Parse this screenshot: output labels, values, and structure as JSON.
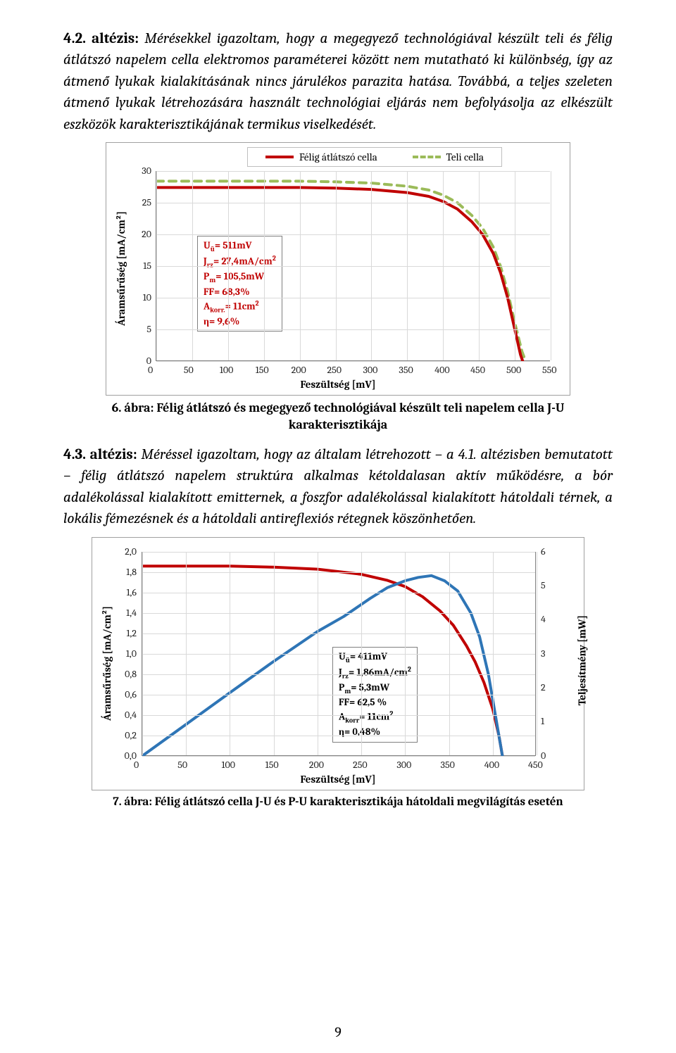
{
  "paragraph1_html": "<span class='thesis-label'>4.2. altézis:</span> Mérésekkel igazoltam, hogy a megegyező technológiával készült teli és félig átlátszó napelem cella elektromos paraméterei között nem mutatható ki különbség, így az átmenő lyukak kialakításának nincs járulékos parazita hatása. Továbbá, a teljes szeleten átmenő lyukak létrehozására használt technológiai eljárás nem befolyásolja az elkészült eszközök karakterisztikájának termikus viselkedését.",
  "paragraph2_html": "<span class='thesis-label'>4.3. altézis:</span> Méréssel igazoltam, hogy az általam létrehozott – a 4.1. altézisben bemutatott – félig átlátszó napelem struktúra alkalmas kétoldalasan aktív működésre, a bór adalékolással kialakított emitternek, a foszfor adalékolással kialakított hátoldali térnek, a lokális fémezésnek és a hátoldali antireflexiós rétegnek köszönhetően.",
  "fig6": {
    "caption": "6. ábra: Félig átlátszó és megegyező technológiával készült teli napelem cella J-U karakterisztikája",
    "legend": {
      "a": "Félig átlátszó cella",
      "b": "Teli cella"
    },
    "xlabel": "Feszültség [mV]",
    "ylabel": "Áramsűrűség [mA/cm²]",
    "xlim": [
      0,
      550
    ],
    "xtick_step": 50,
    "ylim": [
      0,
      30
    ],
    "ytick_step": 5,
    "series": {
      "solid": {
        "color": "#c00000",
        "width": 4,
        "style": "solid"
      },
      "dash": {
        "color": "#9bbb59",
        "width": 4,
        "style": "dash"
      }
    },
    "solid_points": [
      [
        0,
        27.4
      ],
      [
        50,
        27.4
      ],
      [
        100,
        27.4
      ],
      [
        150,
        27.4
      ],
      [
        200,
        27.4
      ],
      [
        250,
        27.3
      ],
      [
        300,
        27.1
      ],
      [
        350,
        26.6
      ],
      [
        380,
        26.0
      ],
      [
        400,
        25.2
      ],
      [
        420,
        24.0
      ],
      [
        440,
        22.0
      ],
      [
        455,
        20.0
      ],
      [
        470,
        17.0
      ],
      [
        480,
        14.0
      ],
      [
        490,
        10.0
      ],
      [
        500,
        5.0
      ],
      [
        508,
        1.0
      ],
      [
        511,
        0
      ]
    ],
    "dash_points": [
      [
        0,
        28.4
      ],
      [
        50,
        28.4
      ],
      [
        100,
        28.4
      ],
      [
        150,
        28.4
      ],
      [
        200,
        28.4
      ],
      [
        250,
        28.3
      ],
      [
        300,
        28.1
      ],
      [
        350,
        27.6
      ],
      [
        380,
        27.0
      ],
      [
        400,
        26.2
      ],
      [
        420,
        25.0
      ],
      [
        440,
        23.0
      ],
      [
        455,
        21.0
      ],
      [
        470,
        18.0
      ],
      [
        480,
        15.0
      ],
      [
        490,
        11.0
      ],
      [
        500,
        6.0
      ],
      [
        510,
        1.5
      ],
      [
        515,
        0
      ]
    ],
    "params_html": "U<sub>ü</sub>= 511mV<br>J<sub>rz</sub>= 27,4mA/cm<sup>2</sup><br>P<sub>m</sub>= 105,5mW<br>FF= 68,3%<br>A<sub>korr.</sub>= 11cm<sup>2</sup><br>η= 9,6%",
    "grid_color": "#d9d9d9",
    "background": "#ffffff"
  },
  "fig7": {
    "caption": "7. ábra: Félig átlátszó cella J-U és P-U karakterisztikája hátoldali megvilágítás esetén",
    "xlabel": "Feszültség [mV]",
    "ylabel_left": "Áramsűrűség [mA/cm²]",
    "ylabel_right": "Teljesítmény [mW]",
    "xlim": [
      0,
      450
    ],
    "xtick_step": 50,
    "ylim_left": [
      0,
      2.0
    ],
    "ytick_left_step": 0.2,
    "ylim_right": [
      0,
      6
    ],
    "ytick_right_step": 1,
    "series": {
      "ju": {
        "color": "#c00000",
        "width": 4
      },
      "pu": {
        "color": "#2e75b6",
        "width": 4
      }
    },
    "ju_points": [
      [
        0,
        1.86
      ],
      [
        50,
        1.86
      ],
      [
        100,
        1.86
      ],
      [
        150,
        1.85
      ],
      [
        200,
        1.83
      ],
      [
        250,
        1.78
      ],
      [
        280,
        1.72
      ],
      [
        300,
        1.66
      ],
      [
        320,
        1.56
      ],
      [
        340,
        1.42
      ],
      [
        355,
        1.28
      ],
      [
        370,
        1.08
      ],
      [
        380,
        0.92
      ],
      [
        390,
        0.72
      ],
      [
        400,
        0.46
      ],
      [
        407,
        0.2
      ],
      [
        411,
        0
      ]
    ],
    "pu_points_mw": [
      [
        0,
        0
      ],
      [
        50,
        0.93
      ],
      [
        100,
        1.86
      ],
      [
        150,
        2.78
      ],
      [
        200,
        3.66
      ],
      [
        230,
        4.1
      ],
      [
        260,
        4.63
      ],
      [
        280,
        4.95
      ],
      [
        300,
        5.15
      ],
      [
        315,
        5.25
      ],
      [
        330,
        5.3
      ],
      [
        345,
        5.15
      ],
      [
        360,
        4.85
      ],
      [
        375,
        4.2
      ],
      [
        385,
        3.5
      ],
      [
        395,
        2.4
      ],
      [
        403,
        1.2
      ],
      [
        411,
        0
      ]
    ],
    "params_html": "U<sub>ü</sub>= 411mV<br>J<sub>rz</sub>= 1,86mA/cm<sup>2</sup><br>P<sub>m</sub>= 5,3mW<br>FF= 62,5 %<br>A<sub>korr</sub>= 11cm<sup>2</sup><br>η= 0,48%",
    "grid_color": "#d9d9d9",
    "background": "#ffffff"
  },
  "page_number": "9"
}
